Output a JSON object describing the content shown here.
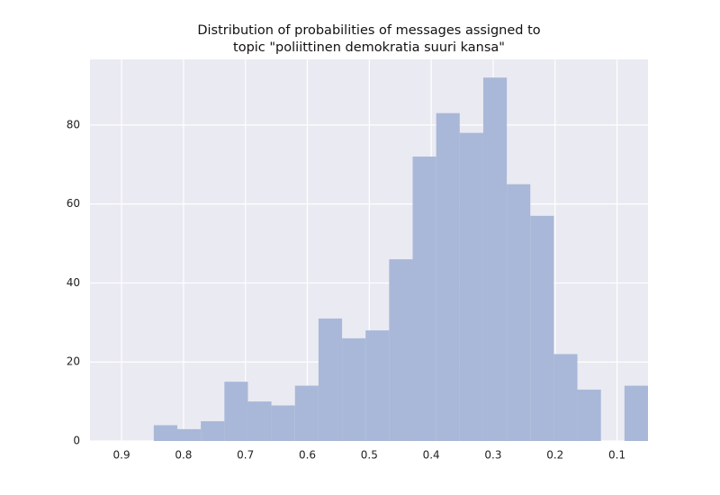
{
  "chart_data": {
    "type": "histogram",
    "title": [
      "Distribution of probabilities of messages assigned to",
      "topic \"poliittinen demokratia suuri kansa\""
    ],
    "bins": [
      0.05,
      0.088,
      0.126,
      0.164,
      0.202,
      0.24,
      0.278,
      0.316,
      0.354,
      0.392,
      0.43,
      0.468,
      0.506,
      0.544,
      0.582,
      0.62,
      0.658,
      0.696,
      0.734,
      0.772,
      0.81,
      0.848
    ],
    "values": [
      14,
      0,
      13,
      22,
      57,
      65,
      92,
      78,
      83,
      72,
      46,
      28,
      26,
      31,
      14,
      9,
      10,
      15,
      5,
      3,
      4
    ],
    "color": "#a9b8d8",
    "xlim": [
      0.951,
      0.05
    ],
    "xticks": [
      0.9,
      0.8,
      0.7,
      0.6,
      0.5,
      0.4,
      0.3,
      0.2,
      0.1
    ],
    "ylim": [
      0,
      96.6
    ],
    "yticks": [
      0,
      20,
      40,
      60,
      80
    ],
    "grid": true
  }
}
